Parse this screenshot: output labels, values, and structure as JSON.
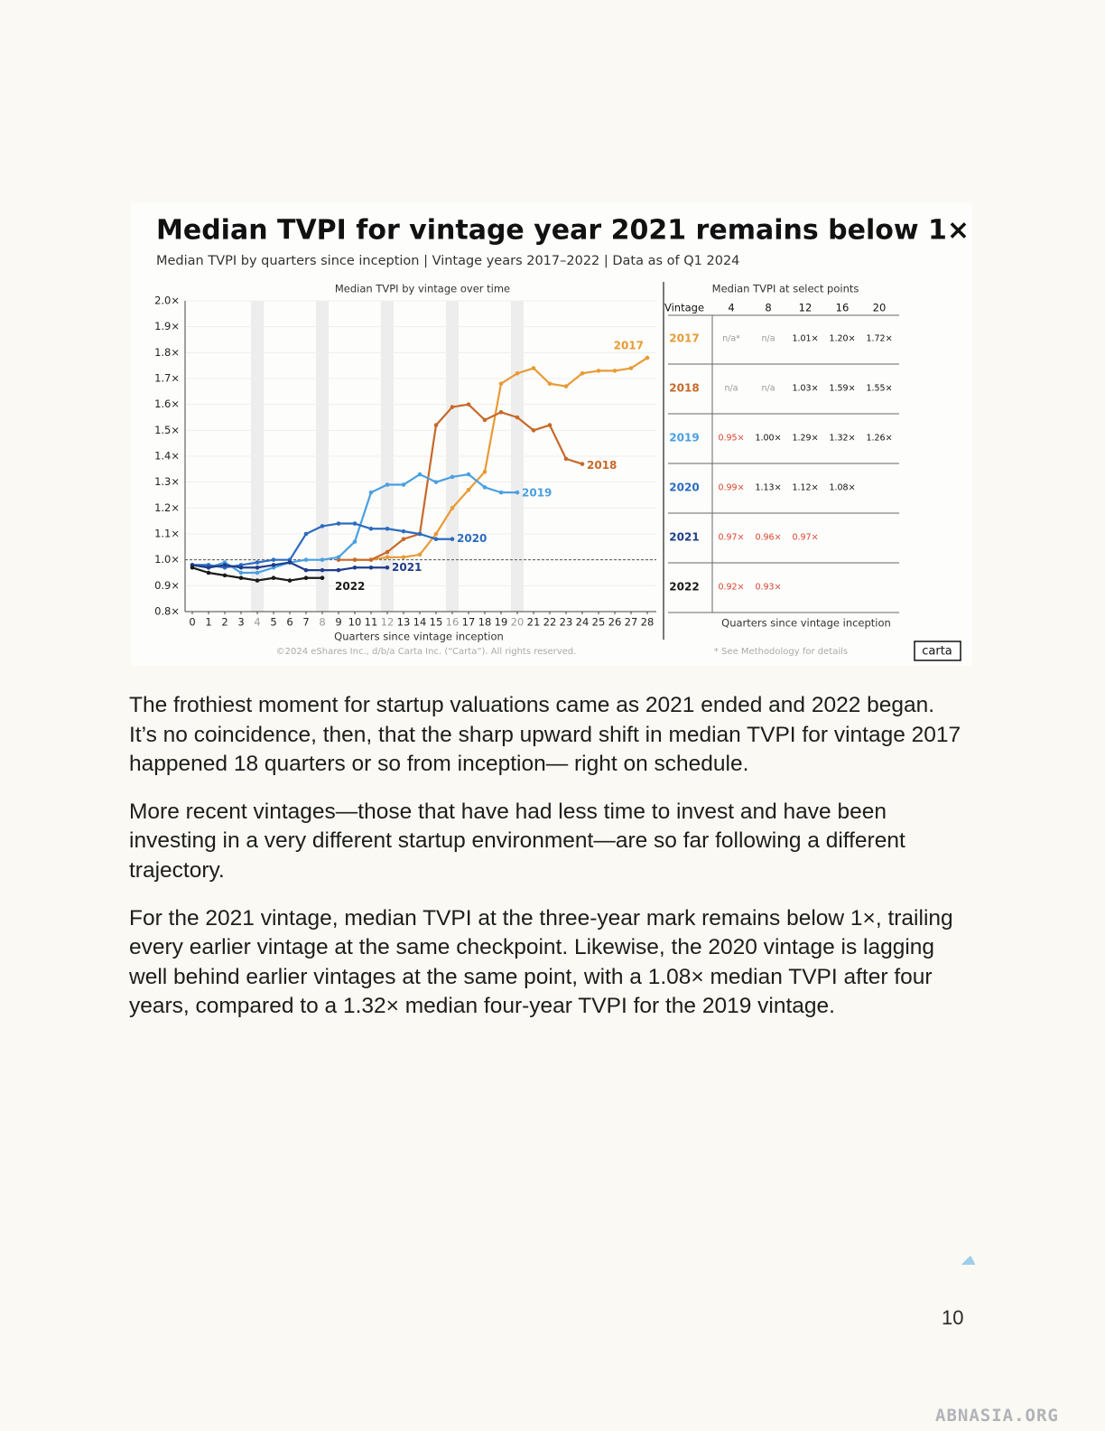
{
  "chart_data": {
    "type": "line",
    "title": "Median TVPI for vintage year 2021 remains below 1×",
    "subtitle": "Median TVPI by quarters since inception | Vintage years 2017–2022 | Data as of Q1 2024",
    "plot_title": "Median TVPI by vintage over time",
    "xlabel": "Quarters since vintage inception",
    "x": [
      0,
      1,
      2,
      3,
      4,
      5,
      6,
      7,
      8,
      9,
      10,
      11,
      12,
      13,
      14,
      15,
      16,
      17,
      18,
      19,
      20,
      21,
      22,
      23,
      24,
      25,
      26,
      27,
      28
    ],
    "xlim": [
      0,
      28
    ],
    "xticks": [
      0,
      1,
      2,
      3,
      4,
      5,
      6,
      7,
      8,
      9,
      10,
      11,
      12,
      13,
      14,
      15,
      16,
      17,
      18,
      19,
      20,
      21,
      22,
      23,
      24,
      25,
      26,
      27,
      28
    ],
    "highlight_x": [
      4,
      8,
      12,
      16,
      20
    ],
    "ylim": [
      0.8,
      2.0
    ],
    "yticks": [
      {
        "value": 0.8,
        "label": "0.8×"
      },
      {
        "value": 0.9,
        "label": "0.9×"
      },
      {
        "value": 1.0,
        "label": "1.0×"
      },
      {
        "value": 1.1,
        "label": "1.1×"
      },
      {
        "value": 1.2,
        "label": "1.2×"
      },
      {
        "value": 1.3,
        "label": "1.3×"
      },
      {
        "value": 1.4,
        "label": "1.4×"
      },
      {
        "value": 1.5,
        "label": "1.5×"
      },
      {
        "value": 1.6,
        "label": "1.6×"
      },
      {
        "value": 1.7,
        "label": "1.7×"
      },
      {
        "value": 1.8,
        "label": "1.8×"
      },
      {
        "value": 1.9,
        "label": "1.9×"
      },
      {
        "value": 2.0,
        "label": "2.0×"
      }
    ],
    "ref_line": 1.0,
    "grid": true,
    "series": [
      {
        "name": "2017",
        "color": "#e89b35",
        "values": [
          null,
          null,
          null,
          null,
          null,
          null,
          null,
          null,
          null,
          null,
          1.0,
          1.0,
          1.01,
          1.01,
          1.02,
          1.1,
          1.2,
          1.27,
          1.34,
          1.68,
          1.72,
          1.74,
          1.68,
          1.67,
          1.72,
          1.73,
          1.73,
          1.74,
          1.78
        ]
      },
      {
        "name": "2018",
        "color": "#c7692a",
        "values": [
          null,
          null,
          null,
          null,
          null,
          null,
          null,
          null,
          null,
          1.0,
          1.0,
          1.0,
          1.03,
          1.08,
          1.1,
          1.52,
          1.59,
          1.6,
          1.54,
          1.57,
          1.55,
          1.5,
          1.52,
          1.39,
          1.37,
          null,
          null,
          null,
          null
        ]
      },
      {
        "name": "2019",
        "color": "#4aa0e2",
        "values": [
          0.98,
          0.97,
          0.99,
          0.95,
          0.95,
          0.97,
          0.99,
          1.0,
          1.0,
          1.01,
          1.07,
          1.26,
          1.29,
          1.29,
          1.33,
          1.3,
          1.32,
          1.33,
          1.28,
          1.26,
          1.26,
          null,
          null,
          null,
          null,
          null,
          null,
          null,
          null
        ]
      },
      {
        "name": "2020",
        "color": "#2c6cbf",
        "values": [
          0.98,
          0.98,
          0.97,
          0.98,
          0.99,
          1.0,
          1.0,
          1.1,
          1.13,
          1.14,
          1.14,
          1.12,
          1.12,
          1.11,
          1.1,
          1.08,
          1.08,
          null,
          null,
          null,
          null,
          null,
          null,
          null,
          null,
          null,
          null,
          null,
          null
        ]
      },
      {
        "name": "2021",
        "color": "#1f3d8a",
        "values": [
          0.98,
          0.97,
          0.98,
          0.97,
          0.97,
          0.98,
          0.99,
          0.96,
          0.96,
          0.96,
          0.97,
          0.97,
          0.97,
          null,
          null,
          null,
          null,
          null,
          null,
          null,
          null,
          null,
          null,
          null,
          null,
          null,
          null,
          null,
          null
        ]
      },
      {
        "name": "2022",
        "color": "#1a1a1a",
        "values": [
          0.97,
          0.95,
          0.94,
          0.93,
          0.92,
          0.93,
          0.92,
          0.93,
          0.93,
          null,
          null,
          null,
          null,
          null,
          null,
          null,
          null,
          null,
          null,
          null,
          null,
          null,
          null,
          null,
          null,
          null,
          null,
          null,
          null
        ]
      }
    ],
    "copyright": "©2024 eShares Inc., d/b/a Carta Inc. (“Carta”). All rights reserved."
  },
  "table": {
    "title": "Median TVPI at select points",
    "header": [
      "Vintage",
      "4",
      "8",
      "12",
      "16",
      "20"
    ],
    "rows": [
      [
        "2017",
        "n/a*",
        "n/a",
        "1.01×",
        "1.20×",
        "1.72×"
      ],
      [
        "2018",
        "n/a",
        "n/a",
        "1.03×",
        "1.59×",
        "1.55×"
      ],
      [
        "2019",
        "0.95×",
        "1.00×",
        "1.29×",
        "1.32×",
        "1.26×"
      ],
      [
        "2020",
        "0.99×",
        "1.13×",
        "1.12×",
        "1.08×"
      ],
      [
        "2021",
        "0.97×",
        "0.96×",
        "0.97×"
      ],
      [
        "2022",
        "0.92×",
        "0.93×"
      ]
    ],
    "footer": "Quarters since vintage inception",
    "footnote": "* See Methodology for details"
  },
  "logo": "carta",
  "body": [
    "The frothiest moment for startup valuations came as 2021 ended and 2022 began. It’s no coincidence, then, that the sharp upward shift in median TVPI for vintage 2017 happened 18 quarters or so from inception— right on schedule.",
    "More recent vintages—those that have had less time to invest and have been investing in a very different startup environment—are so far following a different trajectory.",
    "For the 2021 vintage, median TVPI at the three-year mark remains below 1×, trailing every earlier vintage at the same checkpoint. Likewise, the 2020 vintage is lagging well behind earlier vintages at the same point, with a 1.08× median TVPI after four years, compared to a 1.32× median four-year TVPI for the 2019 vintage."
  ],
  "page_number": "10",
  "watermark": "ABNASIA.ORG"
}
